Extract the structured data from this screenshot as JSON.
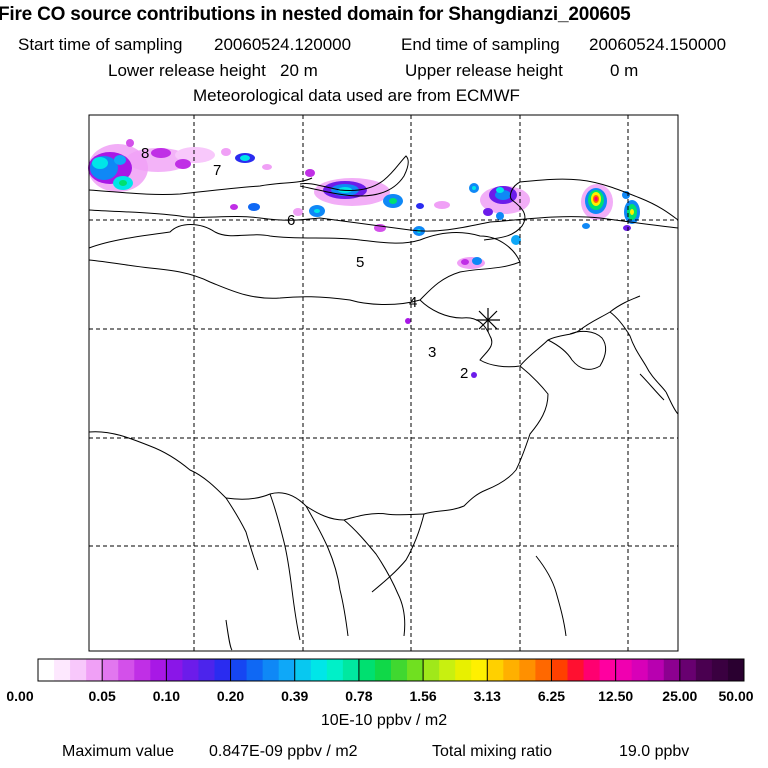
{
  "header": {
    "title": "Fire CO source contributions in nested domain for Shangdianzi_200605",
    "start_label": "Start time of sampling",
    "start_value": "20060524.120000",
    "end_label": "End time of sampling",
    "end_value": "20060524.150000",
    "lower_label": "Lower release height",
    "lower_value": "20 m",
    "upper_label": "Upper release height",
    "upper_value": "0 m",
    "met_text": "Meteorological data used are from ECMWF"
  },
  "map": {
    "receptor_marker": "asterisk-station-marker",
    "trajectory_labels": [
      "2",
      "3",
      "4",
      "5",
      "6",
      "7",
      "8"
    ]
  },
  "colorbar": {
    "labels": [
      "0.00",
      "0.05",
      "0.10",
      "0.20",
      "0.39",
      "0.78",
      "1.56",
      "3.13",
      "6.25",
      "12.50",
      "25.00",
      "50.00"
    ],
    "colors": [
      "#ffffff",
      "#fde8fe",
      "#f8c8fb",
      "#f0a0f6",
      "#e277ef",
      "#d350ea",
      "#c02fe6",
      "#a818e6",
      "#8a16e8",
      "#6c1cea",
      "#4c24ec",
      "#2a2cf0",
      "#1646f2",
      "#0f68f4",
      "#0f88f6",
      "#0fa8f8",
      "#08c8f0",
      "#00e6e8",
      "#00f0c8",
      "#00e8a0",
      "#00e070",
      "#10d848",
      "#40d830",
      "#70e020",
      "#a0e81a",
      "#c8f010",
      "#e8f000",
      "#fff000",
      "#ffd000",
      "#ffb000",
      "#ff9000",
      "#ff6800",
      "#ff4000",
      "#ff1030",
      "#ff0070",
      "#ff00a0",
      "#f000b0",
      "#d800b8",
      "#b800b0",
      "#8c0090",
      "#680070",
      "#4a0050",
      "#3a0040",
      "#2a0030"
    ],
    "unit": "10E-10 ppbv / m2"
  },
  "footer": {
    "max_label": "Maximum value",
    "max_value": "0.847E-09 ppbv / m2",
    "total_label": "Total mixing ratio",
    "total_value": "19.0 ppbv"
  }
}
